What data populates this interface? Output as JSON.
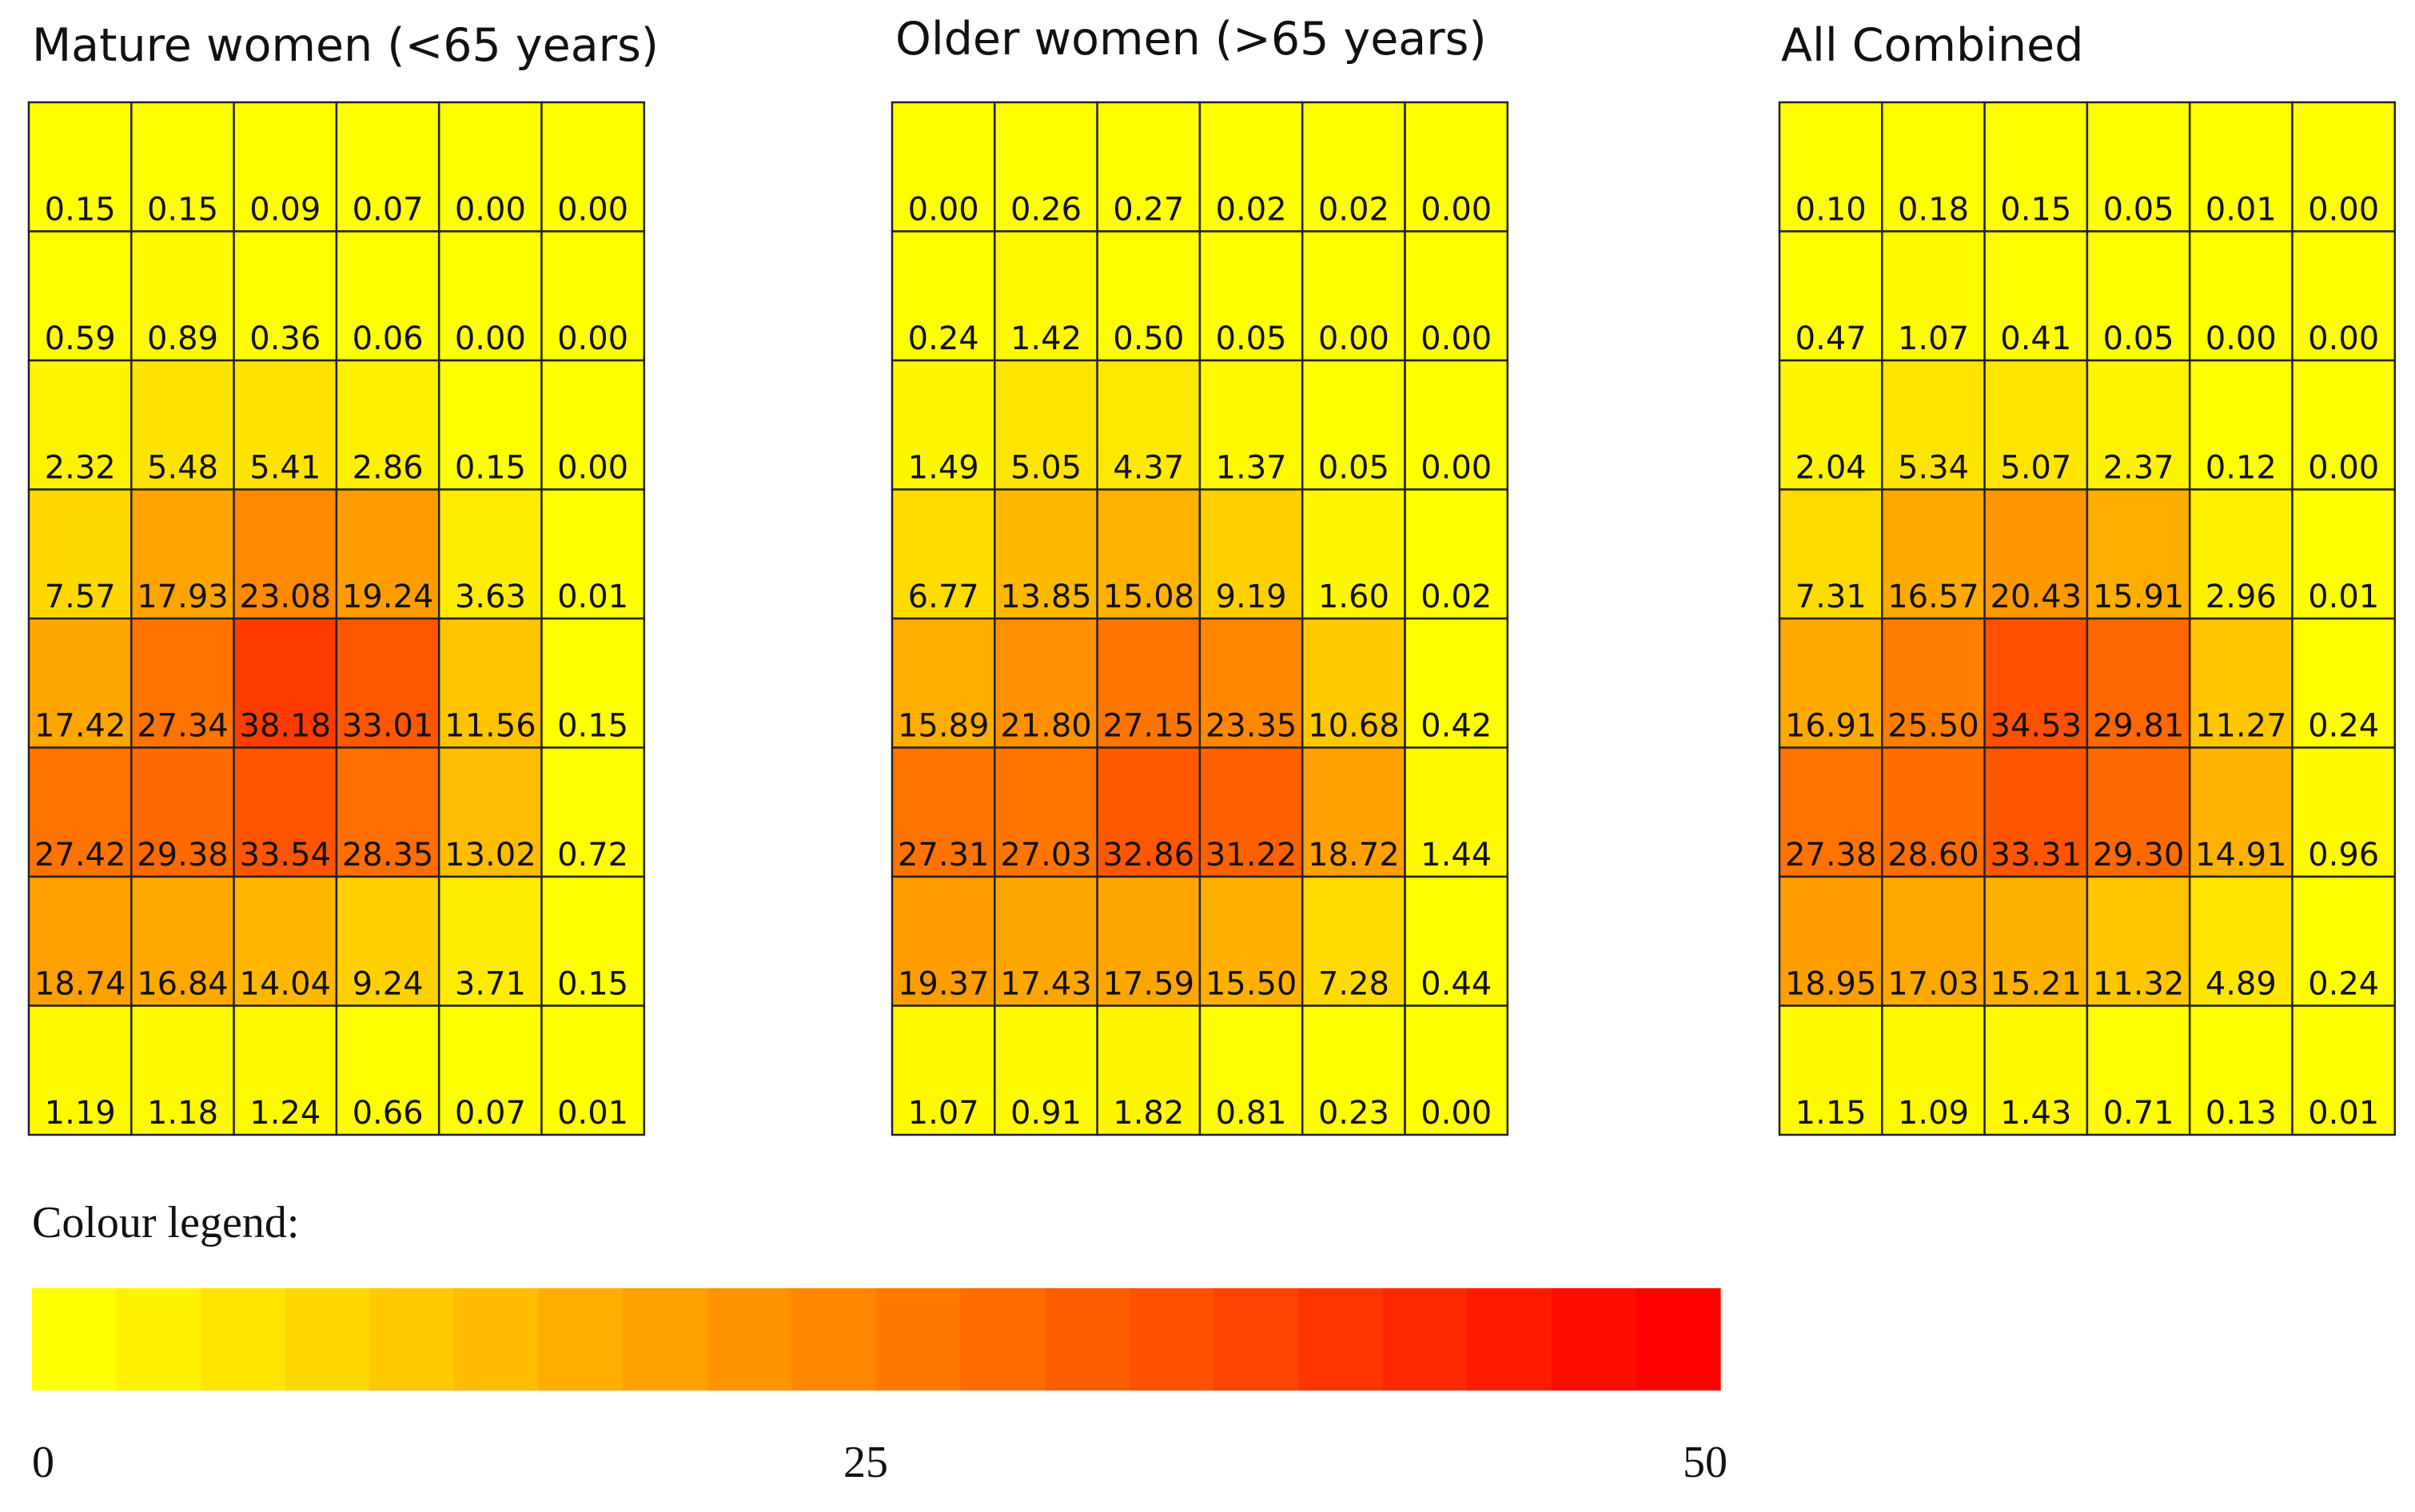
{
  "chart_data": [
    {
      "type": "heatmap",
      "title": "Mature women (<65 years)",
      "rows": 8,
      "cols": 6,
      "values": [
        [
          0.15,
          0.15,
          0.09,
          0.07,
          0.0,
          0.0
        ],
        [
          0.59,
          0.89,
          0.36,
          0.06,
          0.0,
          0.0
        ],
        [
          2.32,
          5.48,
          5.41,
          2.86,
          0.15,
          0.0
        ],
        [
          7.57,
          17.93,
          23.08,
          19.24,
          3.63,
          0.01
        ],
        [
          17.42,
          27.34,
          38.18,
          33.01,
          11.56,
          0.15
        ],
        [
          27.42,
          29.38,
          33.54,
          28.35,
          13.02,
          0.72
        ],
        [
          18.74,
          16.84,
          14.04,
          9.24,
          3.71,
          0.15
        ],
        [
          1.19,
          1.18,
          1.24,
          0.66,
          0.07,
          0.01
        ]
      ]
    },
    {
      "type": "heatmap",
      "title": "Older women (>65 years)",
      "rows": 8,
      "cols": 6,
      "values": [
        [
          0.0,
          0.26,
          0.27,
          0.02,
          0.02,
          0.0
        ],
        [
          0.24,
          1.42,
          0.5,
          0.05,
          0.0,
          0.0
        ],
        [
          1.49,
          5.05,
          4.37,
          1.37,
          0.05,
          0.0
        ],
        [
          6.77,
          13.85,
          15.08,
          9.19,
          1.6,
          0.02
        ],
        [
          15.89,
          21.8,
          27.15,
          23.35,
          10.68,
          0.42
        ],
        [
          27.31,
          27.03,
          32.86,
          31.22,
          18.72,
          1.44
        ],
        [
          19.37,
          17.43,
          17.59,
          15.5,
          7.28,
          0.44
        ],
        [
          1.07,
          0.91,
          1.82,
          0.81,
          0.23,
          0.0
        ]
      ]
    },
    {
      "type": "heatmap",
      "title": "All Combined",
      "rows": 8,
      "cols": 6,
      "values": [
        [
          0.1,
          0.18,
          0.15,
          0.05,
          0.01,
          0.0
        ],
        [
          0.47,
          1.07,
          0.41,
          0.05,
          0.0,
          0.0
        ],
        [
          2.04,
          5.34,
          5.07,
          2.37,
          0.12,
          0.0
        ],
        [
          7.31,
          16.57,
          20.43,
          15.91,
          2.96,
          0.01
        ],
        [
          16.91,
          25.5,
          34.53,
          29.81,
          11.27,
          0.24
        ],
        [
          27.38,
          28.6,
          33.31,
          29.3,
          14.91,
          0.96
        ],
        [
          18.95,
          17.03,
          15.21,
          11.32,
          4.89,
          0.24
        ],
        [
          1.15,
          1.09,
          1.43,
          0.71,
          0.13,
          0.01
        ]
      ]
    }
  ],
  "legend": {
    "title": "Colour legend:",
    "min": 0,
    "max": 50,
    "tick_labels": [
      "0",
      "25",
      "50"
    ],
    "steps": 20,
    "color_low": "#ffff00",
    "color_high": "#ff0000"
  },
  "colors": {
    "cell_border": "#222222",
    "value_text": "#111111"
  }
}
